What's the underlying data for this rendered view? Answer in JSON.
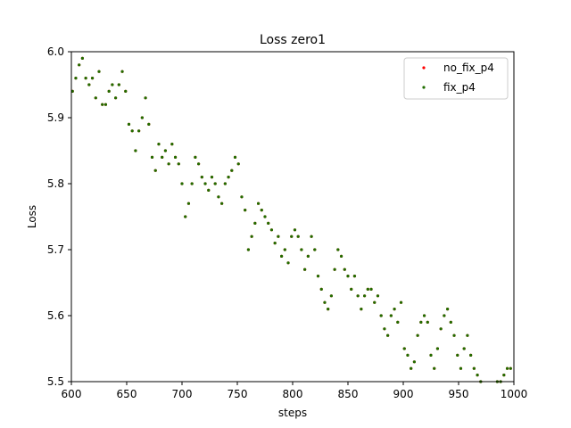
{
  "chart_data": {
    "type": "scatter",
    "title": "Loss zero1",
    "xlabel": "steps",
    "ylabel": "Loss",
    "xlim": [
      600,
      1000
    ],
    "ylim": [
      5.5,
      6.0
    ],
    "xticks": [
      600,
      650,
      700,
      750,
      800,
      850,
      900,
      950,
      1000
    ],
    "xtick_labels": [
      "600",
      "650",
      "700",
      "750",
      "800",
      "850",
      "900",
      "950",
      "1000"
    ],
    "yticks": [
      5.5,
      5.6,
      5.7,
      5.8,
      5.9,
      6.0
    ],
    "ytick_labels": [
      "5.5",
      "5.6",
      "5.7",
      "5.8",
      "5.9",
      "6.0"
    ],
    "grid": false,
    "legend_position": "top-right",
    "series": [
      {
        "name": "no_fix_p4",
        "color": "#ff0000",
        "x": [
          601,
          604,
          607,
          610,
          613,
          616,
          619,
          622,
          625,
          628,
          631,
          634,
          637,
          640,
          643,
          646,
          649,
          652,
          655,
          658,
          661,
          664,
          667,
          670,
          673,
          676,
          679,
          682,
          685,
          688,
          691,
          694,
          697,
          700,
          703,
          706,
          709,
          712,
          715,
          718,
          721,
          724,
          727,
          730,
          733,
          736,
          739,
          742,
          745,
          748,
          751,
          754,
          757,
          760,
          763,
          766,
          769,
          772,
          775,
          778,
          781,
          784,
          787,
          790,
          793,
          796,
          799,
          802,
          805,
          808,
          811,
          814,
          817,
          820,
          823,
          826,
          829,
          832,
          835,
          838,
          841,
          844,
          847,
          850,
          853,
          856,
          859,
          862,
          865,
          868,
          871,
          874,
          877,
          880,
          883,
          886,
          889,
          892,
          895,
          898,
          901,
          904,
          907,
          910,
          913,
          916,
          919,
          922,
          925,
          928,
          931,
          934,
          937,
          940,
          943,
          946,
          949,
          952,
          955,
          958,
          961,
          964,
          967,
          970,
          985,
          988,
          991,
          994,
          997
        ],
        "y": [
          5.94,
          5.96,
          5.98,
          5.99,
          5.96,
          5.95,
          5.96,
          5.93,
          5.97,
          5.92,
          5.92,
          5.94,
          5.95,
          5.93,
          5.95,
          5.97,
          5.94,
          5.89,
          5.88,
          5.85,
          5.88,
          5.9,
          5.93,
          5.89,
          5.84,
          5.82,
          5.86,
          5.84,
          5.85,
          5.83,
          5.86,
          5.84,
          5.83,
          5.8,
          5.75,
          5.77,
          5.8,
          5.84,
          5.83,
          5.81,
          5.8,
          5.79,
          5.81,
          5.8,
          5.78,
          5.77,
          5.8,
          5.81,
          5.82,
          5.84,
          5.83,
          5.78,
          5.76,
          5.7,
          5.72,
          5.74,
          5.77,
          5.76,
          5.75,
          5.74,
          5.73,
          5.71,
          5.72,
          5.69,
          5.7,
          5.68,
          5.72,
          5.73,
          5.72,
          5.7,
          5.67,
          5.69,
          5.72,
          5.7,
          5.66,
          5.64,
          5.62,
          5.61,
          5.63,
          5.67,
          5.7,
          5.69,
          5.67,
          5.66,
          5.64,
          5.66,
          5.63,
          5.61,
          5.63,
          5.64,
          5.64,
          5.62,
          5.63,
          5.6,
          5.58,
          5.57,
          5.6,
          5.61,
          5.59,
          5.62,
          5.55,
          5.54,
          5.52,
          5.53,
          5.57,
          5.59,
          5.6,
          5.59,
          5.54,
          5.52,
          5.55,
          5.58,
          5.6,
          5.61,
          5.59,
          5.57,
          5.54,
          5.52,
          5.55,
          5.57,
          5.54,
          5.52,
          5.51,
          5.5,
          5.5,
          5.5,
          5.51,
          5.52,
          5.52
        ]
      },
      {
        "name": "fix_p4",
        "color": "#1f6e00",
        "x": [
          601,
          604,
          607,
          610,
          613,
          616,
          619,
          622,
          625,
          628,
          631,
          634,
          637,
          640,
          643,
          646,
          649,
          652,
          655,
          658,
          661,
          664,
          667,
          670,
          673,
          676,
          679,
          682,
          685,
          688,
          691,
          694,
          697,
          700,
          703,
          706,
          709,
          712,
          715,
          718,
          721,
          724,
          727,
          730,
          733,
          736,
          739,
          742,
          745,
          748,
          751,
          754,
          757,
          760,
          763,
          766,
          769,
          772,
          775,
          778,
          781,
          784,
          787,
          790,
          793,
          796,
          799,
          802,
          805,
          808,
          811,
          814,
          817,
          820,
          823,
          826,
          829,
          832,
          835,
          838,
          841,
          844,
          847,
          850,
          853,
          856,
          859,
          862,
          865,
          868,
          871,
          874,
          877,
          880,
          883,
          886,
          889,
          892,
          895,
          898,
          901,
          904,
          907,
          910,
          913,
          916,
          919,
          922,
          925,
          928,
          931,
          934,
          937,
          940,
          943,
          946,
          949,
          952,
          955,
          958,
          961,
          964,
          967,
          970,
          985,
          988,
          991,
          994,
          997
        ],
        "y": [
          5.94,
          5.96,
          5.98,
          5.99,
          5.96,
          5.95,
          5.96,
          5.93,
          5.97,
          5.92,
          5.92,
          5.94,
          5.95,
          5.93,
          5.95,
          5.97,
          5.94,
          5.89,
          5.88,
          5.85,
          5.88,
          5.9,
          5.93,
          5.89,
          5.84,
          5.82,
          5.86,
          5.84,
          5.85,
          5.83,
          5.86,
          5.84,
          5.83,
          5.8,
          5.75,
          5.77,
          5.8,
          5.84,
          5.83,
          5.81,
          5.8,
          5.79,
          5.81,
          5.8,
          5.78,
          5.77,
          5.8,
          5.81,
          5.82,
          5.84,
          5.83,
          5.78,
          5.76,
          5.7,
          5.72,
          5.74,
          5.77,
          5.76,
          5.75,
          5.74,
          5.73,
          5.71,
          5.72,
          5.69,
          5.7,
          5.68,
          5.72,
          5.73,
          5.72,
          5.7,
          5.67,
          5.69,
          5.72,
          5.7,
          5.66,
          5.64,
          5.62,
          5.61,
          5.63,
          5.67,
          5.7,
          5.69,
          5.67,
          5.66,
          5.64,
          5.66,
          5.63,
          5.61,
          5.63,
          5.64,
          5.64,
          5.62,
          5.63,
          5.6,
          5.58,
          5.57,
          5.6,
          5.61,
          5.59,
          5.62,
          5.55,
          5.54,
          5.52,
          5.53,
          5.57,
          5.59,
          5.6,
          5.59,
          5.54,
          5.52,
          5.55,
          5.58,
          5.6,
          5.61,
          5.59,
          5.57,
          5.54,
          5.52,
          5.55,
          5.57,
          5.54,
          5.52,
          5.51,
          5.5,
          5.5,
          5.5,
          5.51,
          5.52,
          5.52
        ]
      }
    ]
  }
}
